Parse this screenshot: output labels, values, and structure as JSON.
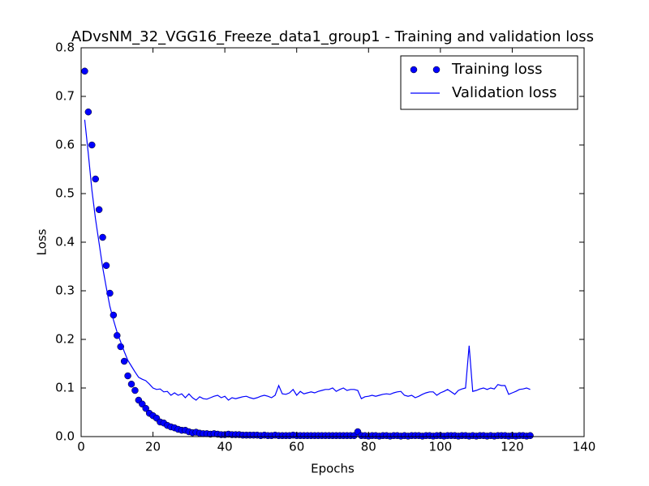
{
  "chart_data": {
    "type": "scatter-line",
    "title": "ADvsNM_32_VGG16_Freeze_data1_group1 - Training and validation loss",
    "x_label": "Epochs",
    "y_label": "Loss",
    "x": [
      1,
      2,
      3,
      4,
      5,
      6,
      7,
      8,
      9,
      10,
      11,
      12,
      13,
      14,
      15,
      16,
      17,
      18,
      19,
      20,
      21,
      22,
      23,
      24,
      25,
      26,
      27,
      28,
      29,
      30,
      31,
      32,
      33,
      34,
      35,
      36,
      37,
      38,
      39,
      40,
      41,
      42,
      43,
      44,
      45,
      46,
      47,
      48,
      49,
      50,
      51,
      52,
      53,
      54,
      55,
      56,
      57,
      58,
      59,
      60,
      61,
      62,
      63,
      64,
      65,
      66,
      67,
      68,
      69,
      70,
      71,
      72,
      73,
      74,
      75,
      76,
      77,
      78,
      79,
      80,
      81,
      82,
      83,
      84,
      85,
      86,
      87,
      88,
      89,
      90,
      91,
      92,
      93,
      94,
      95,
      96,
      97,
      98,
      99,
      100,
      101,
      102,
      103,
      104,
      105,
      106,
      107,
      108,
      109,
      110,
      111,
      112,
      113,
      114,
      115,
      116,
      117,
      118,
      119,
      120,
      121,
      122,
      123,
      124,
      125
    ],
    "series": [
      {
        "name": "Training loss",
        "style": "markers",
        "color": "#0000ff",
        "values": [
          0.752,
          0.668,
          0.6,
          0.53,
          0.467,
          0.41,
          0.352,
          0.295,
          0.25,
          0.208,
          0.185,
          0.155,
          0.125,
          0.108,
          0.095,
          0.075,
          0.067,
          0.058,
          0.048,
          0.043,
          0.038,
          0.03,
          0.028,
          0.023,
          0.02,
          0.018,
          0.015,
          0.013,
          0.013,
          0.01,
          0.008,
          0.009,
          0.007,
          0.006,
          0.006,
          0.005,
          0.006,
          0.005,
          0.004,
          0.004,
          0.005,
          0.004,
          0.004,
          0.004,
          0.003,
          0.003,
          0.003,
          0.003,
          0.003,
          0.002,
          0.003,
          0.002,
          0.002,
          0.003,
          0.002,
          0.002,
          0.002,
          0.002,
          0.003,
          0.002,
          0.002,
          0.002,
          0.002,
          0.002,
          0.002,
          0.002,
          0.002,
          0.002,
          0.002,
          0.002,
          0.002,
          0.002,
          0.002,
          0.002,
          0.002,
          0.002,
          0.01,
          0.002,
          0.002,
          0.001,
          0.002,
          0.002,
          0.001,
          0.002,
          0.002,
          0.001,
          0.002,
          0.002,
          0.001,
          0.002,
          0.001,
          0.002,
          0.002,
          0.002,
          0.001,
          0.002,
          0.002,
          0.001,
          0.002,
          0.002,
          0.001,
          0.002,
          0.002,
          0.002,
          0.001,
          0.002,
          0.002,
          0.001,
          0.002,
          0.001,
          0.002,
          0.002,
          0.001,
          0.002,
          0.001,
          0.002,
          0.002,
          0.002,
          0.001,
          0.002,
          0.001,
          0.002,
          0.002,
          0.001,
          0.002
        ]
      },
      {
        "name": "Validation loss",
        "style": "line",
        "color": "#0000ff",
        "values": [
          0.652,
          0.582,
          0.507,
          0.448,
          0.398,
          0.348,
          0.307,
          0.268,
          0.24,
          0.215,
          0.195,
          0.175,
          0.157,
          0.145,
          0.133,
          0.122,
          0.118,
          0.115,
          0.108,
          0.1,
          0.097,
          0.098,
          0.092,
          0.093,
          0.085,
          0.09,
          0.085,
          0.088,
          0.08,
          0.088,
          0.08,
          0.075,
          0.082,
          0.078,
          0.077,
          0.08,
          0.083,
          0.085,
          0.08,
          0.083,
          0.075,
          0.08,
          0.078,
          0.08,
          0.082,
          0.083,
          0.08,
          0.078,
          0.08,
          0.083,
          0.085,
          0.083,
          0.08,
          0.085,
          0.105,
          0.088,
          0.087,
          0.09,
          0.097,
          0.085,
          0.093,
          0.088,
          0.09,
          0.092,
          0.09,
          0.093,
          0.095,
          0.097,
          0.097,
          0.1,
          0.093,
          0.097,
          0.1,
          0.095,
          0.097,
          0.097,
          0.095,
          0.078,
          0.082,
          0.083,
          0.085,
          0.083,
          0.085,
          0.087,
          0.088,
          0.087,
          0.09,
          0.092,
          0.093,
          0.085,
          0.083,
          0.085,
          0.08,
          0.083,
          0.087,
          0.09,
          0.092,
          0.092,
          0.085,
          0.09,
          0.093,
          0.097,
          0.092,
          0.087,
          0.095,
          0.098,
          0.1,
          0.187,
          0.093,
          0.095,
          0.098,
          0.1,
          0.097,
          0.1,
          0.098,
          0.107,
          0.105,
          0.105,
          0.087,
          0.09,
          0.093,
          0.097,
          0.098,
          0.1,
          0.097
        ]
      }
    ],
    "xlim": [
      0,
      140
    ],
    "xticks": [
      0,
      20,
      40,
      60,
      80,
      100,
      120,
      140
    ],
    "ylim": [
      0,
      0.8
    ],
    "yticks": [
      {
        "value": 0,
        "label": "0.0"
      },
      0.1,
      0.2,
      0.3,
      0.4,
      0.5,
      0.6,
      0.7,
      0.8
    ],
    "legend": "upper right",
    "grid": false
  }
}
